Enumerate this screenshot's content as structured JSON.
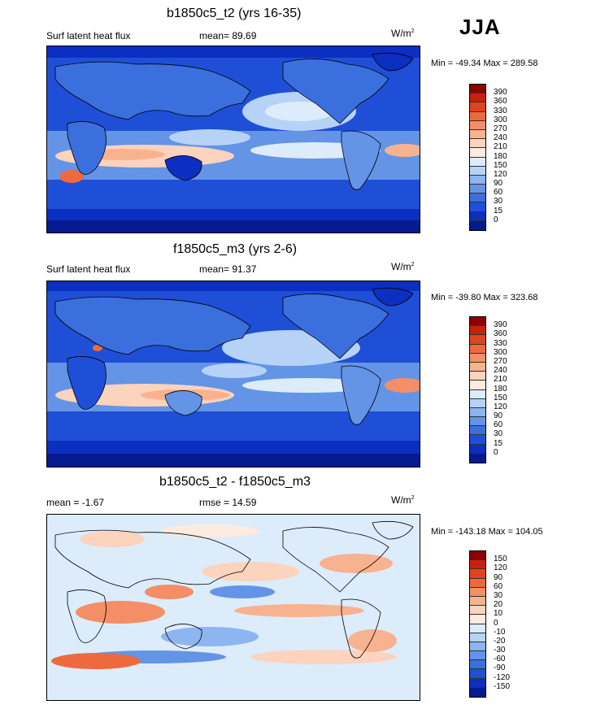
{
  "season": "JJA",
  "panels": [
    {
      "title": "b1850c5_t2 (yrs 16-35)",
      "left_label": "Surf latent heat flux",
      "mid_label": "mean=  89.69",
      "units_base": "W/m",
      "units_exp": "2",
      "minmax": "Min = -49.34 Max = 289.58",
      "field": "absolute"
    },
    {
      "title": "f1850c5_m3 (yrs 2-6)",
      "left_label": "Surf latent heat flux",
      "mid_label": "mean=  91.37",
      "units_base": "W/m",
      "units_exp": "2",
      "minmax": "Min = -39.80 Max = 323.68",
      "field": "absolute"
    },
    {
      "title": "b1850c5_t2 - f1850c5_m3",
      "left_label": "mean =  -1.67",
      "mid_label": "rmse =  14.59",
      "units_base": "W/m",
      "units_exp": "2",
      "minmax": "Min = -143.18 Max = 104.05",
      "field": "difference"
    }
  ],
  "colorbars": {
    "absolute": {
      "labels": [
        "390",
        "360",
        "330",
        "300",
        "270",
        "240",
        "210",
        "180",
        "150",
        "120",
        "90",
        "60",
        "30",
        "15",
        "0"
      ],
      "colors": [
        "#8b0000",
        "#c8200c",
        "#e0441e",
        "#ee6a3e",
        "#f48e66",
        "#f8b290",
        "#fcd3bd",
        "#fdebdf",
        "#dcecfb",
        "#b6d3f7",
        "#8db5ef",
        "#6494e6",
        "#3b6fdd",
        "#1f4fd6",
        "#0b2fc0",
        "#041a8e"
      ]
    },
    "difference": {
      "labels": [
        "150",
        "120",
        "90",
        "60",
        "30",
        "20",
        "10",
        "0",
        "-10",
        "-20",
        "-30",
        "-60",
        "-90",
        "-120",
        "-150"
      ],
      "colors": [
        "#8b0000",
        "#c8200c",
        "#e0441e",
        "#ee6a3e",
        "#f48e66",
        "#f8b290",
        "#fcd3bd",
        "#fdebdf",
        "#dcecfb",
        "#b6d3f7",
        "#8db5ef",
        "#6494e6",
        "#3b6fdd",
        "#1f4fd6",
        "#0b2fc0",
        "#041a8e"
      ]
    }
  }
}
